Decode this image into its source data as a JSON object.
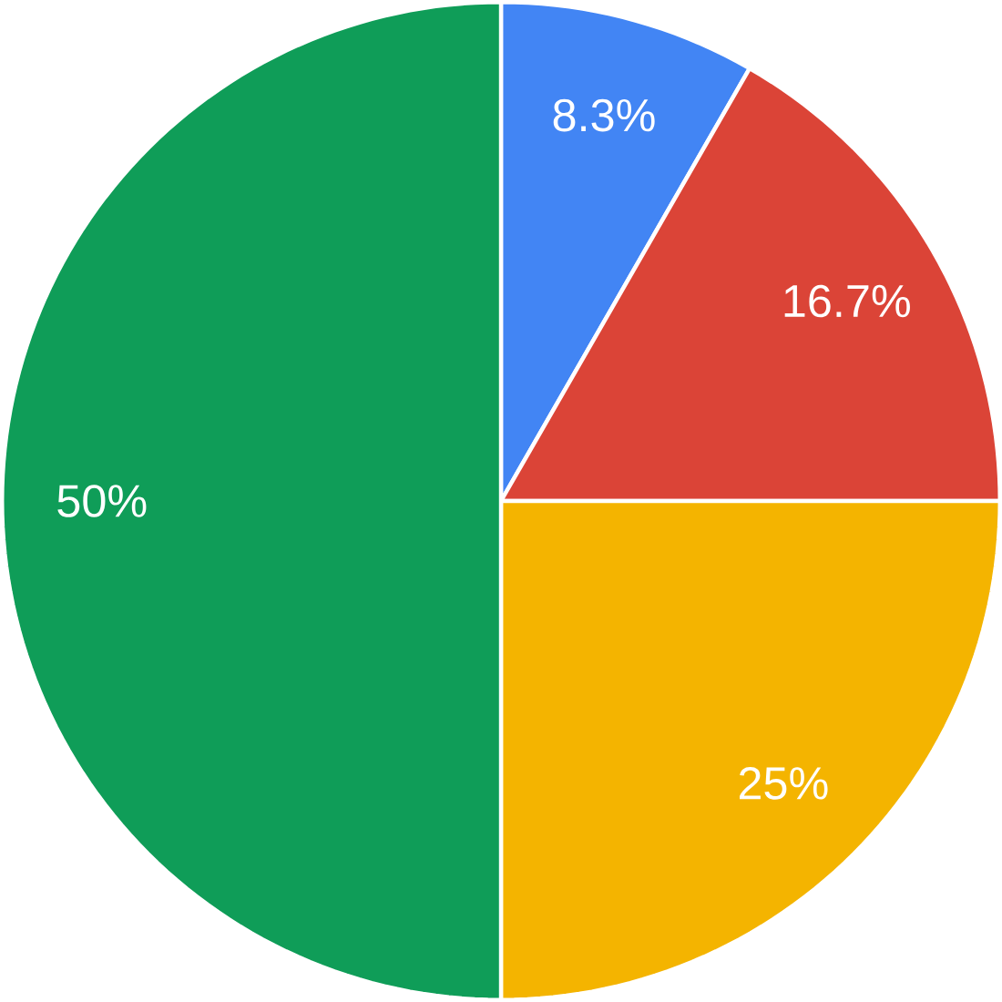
{
  "chart_data": {
    "type": "pie",
    "categories": [
      null,
      null,
      null,
      null
    ],
    "values": [
      8.3,
      16.7,
      25,
      50
    ],
    "colors": [
      "#4285f4",
      "#db4437",
      "#f4b400",
      "#0f9d58"
    ],
    "value_labels": [
      "8.3%",
      "16.7%",
      "25%",
      "50%"
    ]
  }
}
